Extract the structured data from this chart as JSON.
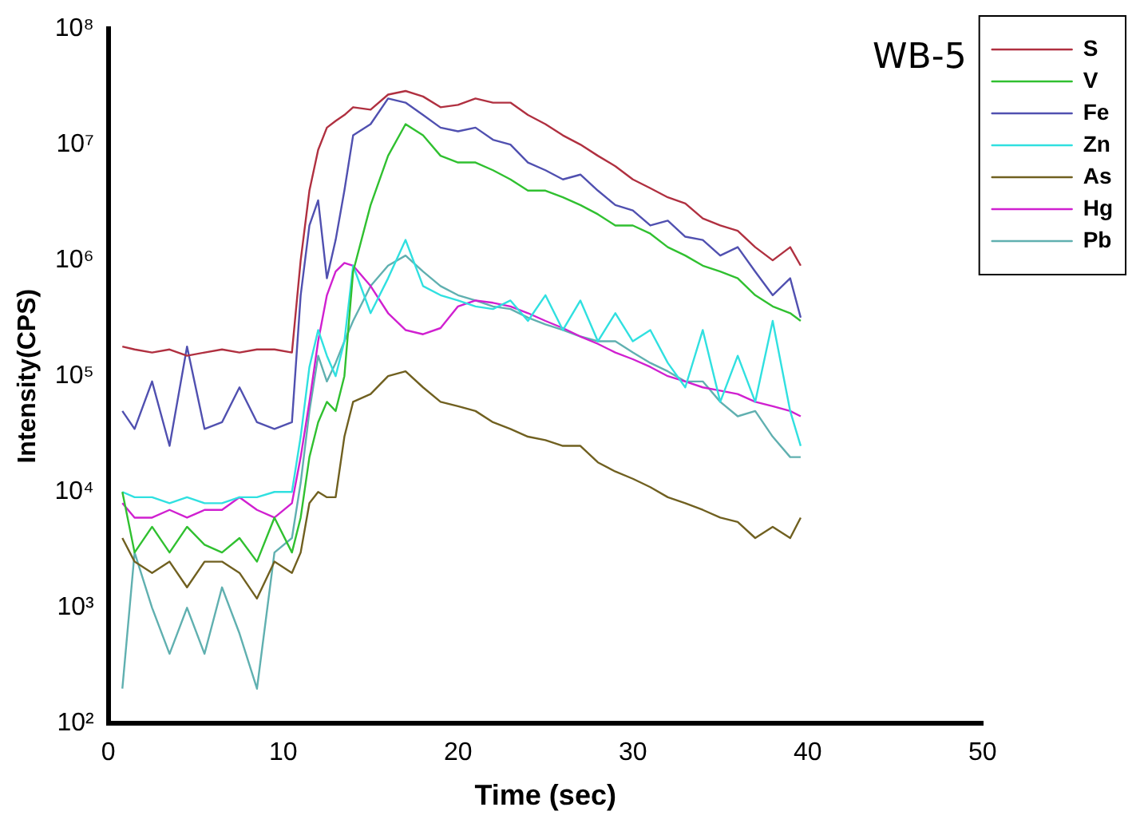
{
  "chart_data": {
    "type": "line",
    "xlabel": "Time (sec)",
    "ylabel": "Intensity(CPS)",
    "annotations": [
      "WB-5"
    ],
    "log": "y",
    "grid": false,
    "legend": "top right",
    "marker": "none",
    "line_style": "solid",
    "x": [
      0.8,
      1.5,
      2.5,
      3.5,
      4.5,
      5.5,
      6.5,
      7.5,
      8.5,
      9.5,
      10.5,
      11,
      11.5,
      12,
      12.5,
      13,
      13.5,
      14,
      15,
      16,
      17,
      18,
      19,
      20,
      21,
      22,
      23,
      24,
      25,
      26,
      27,
      28,
      29,
      30,
      31,
      32,
      33,
      34,
      35,
      36,
      37,
      38,
      39,
      39.6
    ],
    "xlim": [
      0,
      50
    ],
    "xticks": [
      0,
      10,
      20,
      30,
      40,
      50
    ],
    "ylim": [
      100,
      100000000
    ],
    "yticks": [
      {
        "value": 100,
        "label": "10²"
      },
      {
        "value": 1000,
        "label": "10³"
      },
      {
        "value": 10000,
        "label": "10⁴"
      },
      {
        "value": 100000,
        "label": "10⁵"
      },
      {
        "value": 1000000,
        "label": "10⁶"
      },
      {
        "value": 10000000,
        "label": "10⁷"
      },
      {
        "value": 100000000,
        "label": "10⁸"
      }
    ],
    "series": [
      {
        "name": "S",
        "color": "#b03040",
        "values": [
          180000,
          170000,
          160000,
          170000,
          150000,
          160000,
          170000,
          160000,
          170000,
          170000,
          160000,
          1000000,
          4000000,
          9000000,
          14000000,
          16000000,
          18000000,
          21000000,
          20000000,
          27000000,
          29000000,
          26000000,
          21000000,
          22000000,
          25000000,
          23000000,
          23000000,
          18000000,
          15000000,
          12000000,
          10000000,
          8000000,
          6500000,
          5000000,
          4200000,
          3500000,
          3100000,
          2300000,
          2000000,
          1800000,
          1300000,
          1000000,
          1300000,
          900000
        ]
      },
      {
        "name": "V",
        "color": "#30c030",
        "values": [
          10000,
          3000,
          5000,
          3000,
          5000,
          3500,
          3000,
          4000,
          2500,
          6000,
          3000,
          6000,
          20000,
          40000,
          60000,
          50000,
          100000,
          800000,
          3000000,
          8000000,
          15000000,
          12000000,
          8000000,
          7000000,
          7000000,
          6000000,
          5000000,
          4000000,
          4000000,
          3500000,
          3000000,
          2500000,
          2000000,
          2000000,
          1700000,
          1300000,
          1100000,
          900000,
          800000,
          700000,
          500000,
          400000,
          350000,
          300000
        ]
      },
      {
        "name": "Fe",
        "color": "#5050b0",
        "values": [
          50000,
          35000,
          90000,
          25000,
          180000,
          35000,
          40000,
          80000,
          40000,
          35000,
          40000,
          500000,
          2000000,
          3300000,
          700000,
          1500000,
          4000000,
          12000000,
          15000000,
          25000000,
          23000000,
          18000000,
          14000000,
          13000000,
          14000000,
          11000000,
          10000000,
          7000000,
          6000000,
          5000000,
          5500000,
          4000000,
          3000000,
          2700000,
          2000000,
          2200000,
          1600000,
          1500000,
          1100000,
          1300000,
          800000,
          500000,
          700000,
          320000
        ]
      },
      {
        "name": "Zn",
        "color": "#30e0e0",
        "values": [
          10000,
          9000,
          9000,
          8000,
          9000,
          8000,
          8000,
          9000,
          9000,
          10000,
          10000,
          30000,
          120000,
          250000,
          150000,
          100000,
          200000,
          900000,
          350000,
          700000,
          1500000,
          600000,
          500000,
          450000,
          400000,
          380000,
          450000,
          300000,
          500000,
          250000,
          450000,
          200000,
          350000,
          200000,
          250000,
          130000,
          80000,
          250000,
          60000,
          150000,
          60000,
          300000,
          50000,
          25000
        ]
      },
      {
        "name": "As",
        "color": "#706020",
        "values": [
          4000,
          2500,
          2000,
          2500,
          1500,
          2500,
          2500,
          2000,
          1200,
          2500,
          2000,
          3000,
          8000,
          10000,
          9000,
          9000,
          30000,
          60000,
          70000,
          100000,
          110000,
          80000,
          60000,
          55000,
          50000,
          40000,
          35000,
          30000,
          28000,
          25000,
          25000,
          18000,
          15000,
          13000,
          11000,
          9000,
          8000,
          7000,
          6000,
          5500,
          4000,
          5000,
          4000,
          6000
        ]
      },
      {
        "name": "Hg",
        "color": "#d020d0",
        "values": [
          8000,
          6000,
          6000,
          7000,
          6000,
          7000,
          7000,
          9000,
          7000,
          6000,
          8000,
          20000,
          60000,
          200000,
          500000,
          800000,
          950000,
          900000,
          600000,
          350000,
          250000,
          230000,
          260000,
          400000,
          450000,
          430000,
          400000,
          350000,
          300000,
          260000,
          220000,
          190000,
          160000,
          140000,
          120000,
          100000,
          90000,
          80000,
          75000,
          70000,
          60000,
          55000,
          50000,
          45000
        ]
      },
      {
        "name": "Pb",
        "color": "#60b0b0",
        "values": [
          200,
          3000,
          1000,
          400,
          1000,
          400,
          1500,
          600,
          200,
          3000,
          4000,
          12000,
          50000,
          150000,
          90000,
          130000,
          200000,
          300000,
          600000,
          900000,
          1100000,
          800000,
          600000,
          500000,
          450000,
          400000,
          380000,
          320000,
          280000,
          250000,
          220000,
          200000,
          200000,
          160000,
          130000,
          110000,
          90000,
          90000,
          60000,
          45000,
          50000,
          30000,
          20000,
          20000
        ]
      }
    ]
  }
}
